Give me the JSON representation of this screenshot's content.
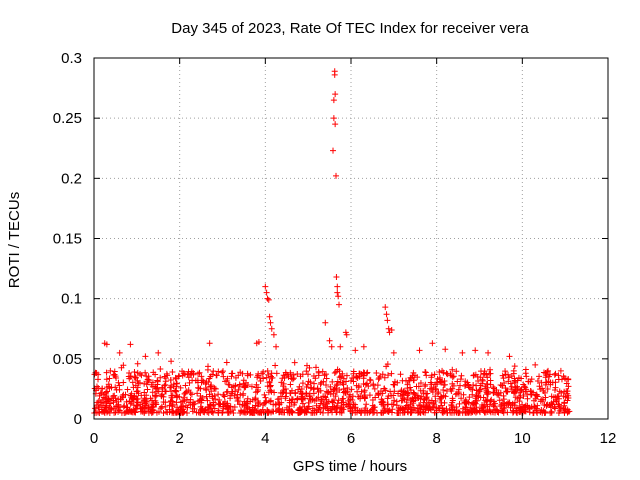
{
  "chart_data": {
    "type": "scatter",
    "title": "Day 345 of 2023, Rate Of TEC Index for receiver vera",
    "xlabel": "GPS time / hours",
    "ylabel": "ROTI / TECUs",
    "xlim": [
      0,
      12
    ],
    "ylim": [
      0,
      0.3
    ],
    "x_ticks": [
      0,
      2,
      4,
      6,
      8,
      10,
      12
    ],
    "x_tick_labels": [
      "0",
      "2",
      "4",
      "6",
      "8",
      "10",
      "12"
    ],
    "y_ticks": [
      0,
      0.05,
      0.1,
      0.15,
      0.2,
      0.25,
      0.3
    ],
    "y_tick_labels": [
      "0",
      "0.05",
      "0.1",
      "0.15",
      "0.2",
      "0.25",
      "0.3"
    ],
    "grid": true,
    "marker": "+",
    "color": "#ff0000",
    "series": [
      {
        "name": "ROTI",
        "baseline_range": [
          0.005,
          0.04
        ],
        "x_range": [
          0,
          11.1
        ],
        "highlights": [
          [
            0.25,
            0.063
          ],
          [
            0.3,
            0.062
          ],
          [
            0.6,
            0.055
          ],
          [
            0.85,
            0.062
          ],
          [
            1.2,
            0.052
          ],
          [
            1.5,
            0.055
          ],
          [
            1.8,
            0.048
          ],
          [
            2.7,
            0.063
          ],
          [
            3.1,
            0.047
          ],
          [
            3.8,
            0.063
          ],
          [
            3.85,
            0.064
          ],
          [
            4.0,
            0.11
          ],
          [
            4.03,
            0.105
          ],
          [
            4.05,
            0.1
          ],
          [
            4.08,
            0.099
          ],
          [
            4.1,
            0.085
          ],
          [
            4.12,
            0.08
          ],
          [
            4.15,
            0.075
          ],
          [
            4.2,
            0.07
          ],
          [
            4.25,
            0.06
          ],
          [
            5.4,
            0.08
          ],
          [
            5.5,
            0.065
          ],
          [
            5.55,
            0.06
          ],
          [
            5.58,
            0.223
          ],
          [
            5.6,
            0.25
          ],
          [
            5.6,
            0.265
          ],
          [
            5.62,
            0.289
          ],
          [
            5.62,
            0.286
          ],
          [
            5.63,
            0.27
          ],
          [
            5.63,
            0.245
          ],
          [
            5.65,
            0.202
          ],
          [
            5.66,
            0.118
          ],
          [
            5.68,
            0.11
          ],
          [
            5.68,
            0.105
          ],
          [
            5.7,
            0.102
          ],
          [
            5.72,
            0.095
          ],
          [
            5.75,
            0.06
          ],
          [
            5.88,
            0.072
          ],
          [
            5.9,
            0.07
          ],
          [
            6.1,
            0.057
          ],
          [
            6.3,
            0.06
          ],
          [
            6.8,
            0.093
          ],
          [
            6.83,
            0.087
          ],
          [
            6.85,
            0.082
          ],
          [
            6.88,
            0.075
          ],
          [
            6.9,
            0.072
          ],
          [
            6.95,
            0.074
          ],
          [
            7.0,
            0.055
          ],
          [
            7.6,
            0.057
          ],
          [
            7.9,
            0.063
          ],
          [
            8.2,
            0.058
          ],
          [
            8.6,
            0.055
          ],
          [
            8.9,
            0.057
          ],
          [
            9.2,
            0.055
          ],
          [
            9.7,
            0.052
          ],
          [
            10.3,
            0.045
          ],
          [
            10.6,
            0.04
          ],
          [
            10.9,
            0.04
          ]
        ]
      }
    ]
  }
}
